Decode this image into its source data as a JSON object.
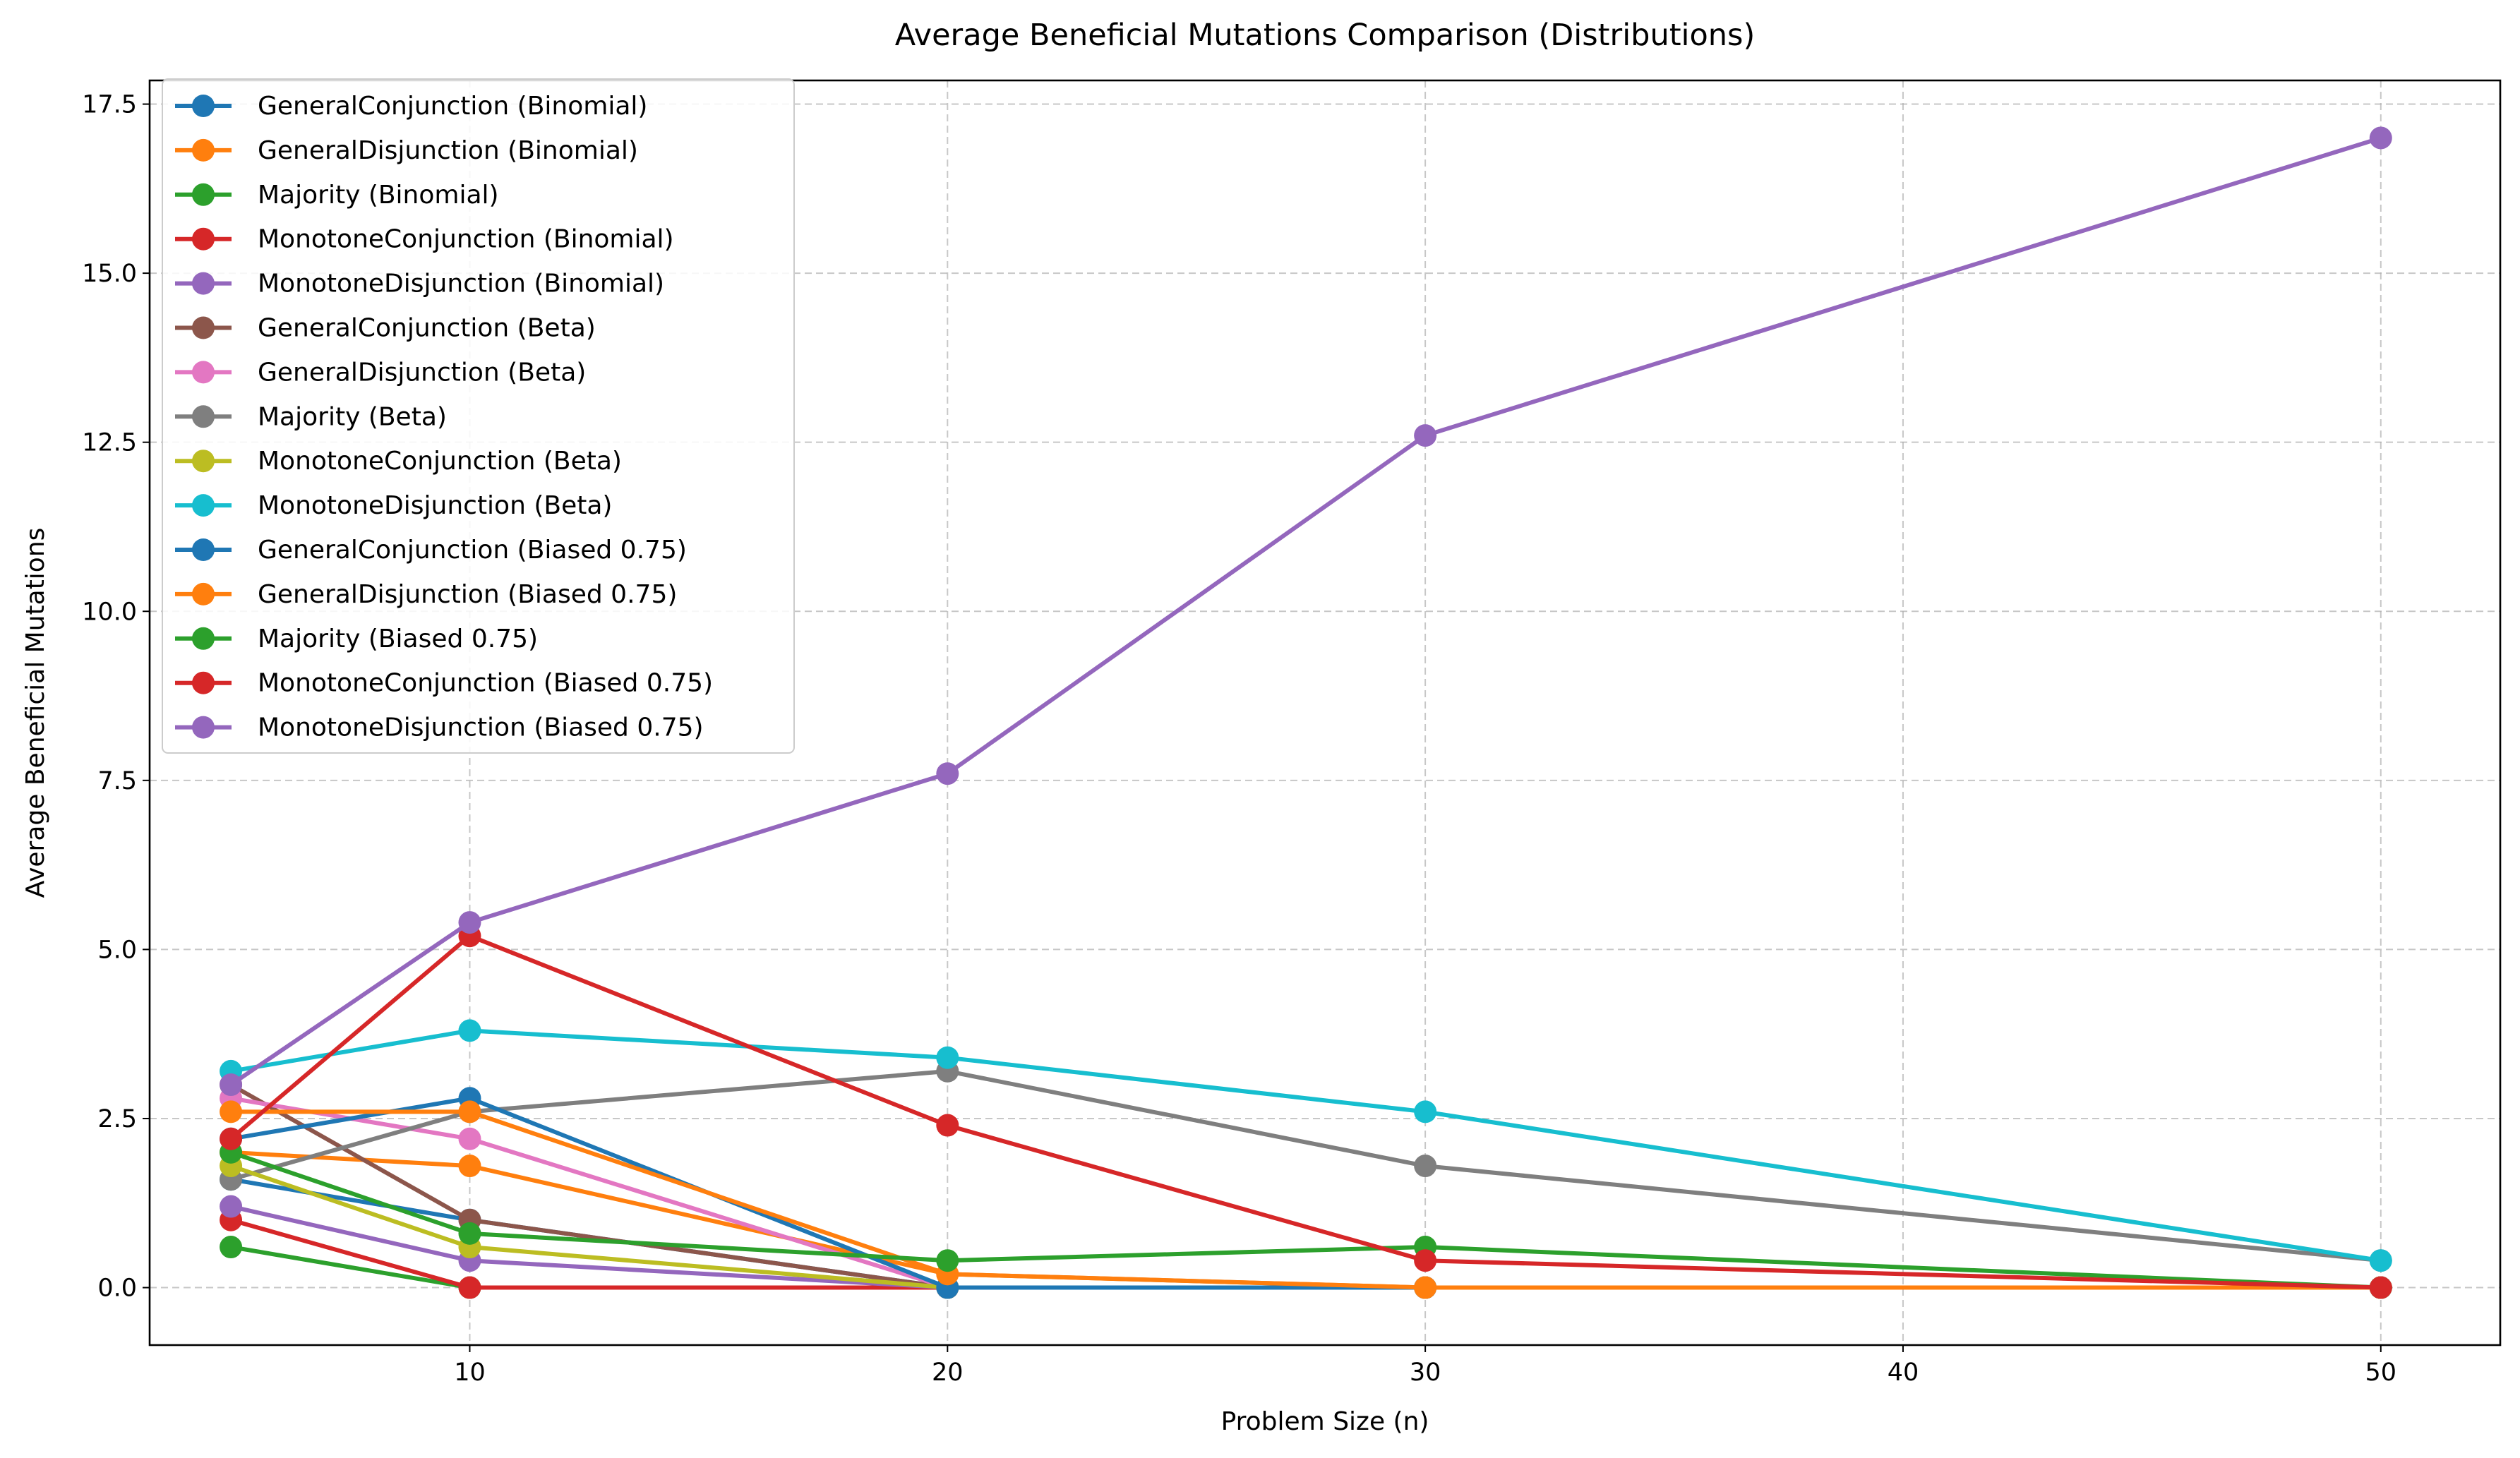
{
  "chart_data": {
    "type": "line",
    "title": "Average Beneficial Mutations Comparison (Distributions)",
    "xlabel": "Problem Size (n)",
    "ylabel": "Average Beneficial Mutations",
    "xlim": [
      3.3,
      52.5
    ],
    "ylim": [
      -0.85,
      17.85
    ],
    "x_ticks": [
      10,
      20,
      30,
      40,
      50
    ],
    "x_tick_labels": [
      "10",
      "20",
      "30",
      "40",
      "50"
    ],
    "y_ticks": [
      0,
      2.5,
      5,
      7.5,
      10,
      12.5,
      15,
      17.5
    ],
    "y_tick_labels": [
      "0.0",
      "2.5",
      "5.0",
      "7.5",
      "10.0",
      "12.5",
      "15.0",
      "17.5"
    ],
    "grid": true,
    "legend_position": "top-left",
    "x": [
      5,
      10,
      20,
      30,
      50
    ],
    "series": [
      {
        "name": "GeneralConjunction (Binomial)",
        "color": "#1f77b4",
        "values": [
          1.6,
          1.0,
          0.0,
          0.0,
          0.0
        ]
      },
      {
        "name": "GeneralDisjunction (Binomial)",
        "color": "#ff7f0e",
        "values": [
          2.0,
          1.8,
          0.2,
          0.0,
          0.0
        ]
      },
      {
        "name": "Majority (Binomial)",
        "color": "#2ca02c",
        "values": [
          0.6,
          0.0,
          0.0,
          0.0,
          0.0
        ]
      },
      {
        "name": "MonotoneConjunction (Binomial)",
        "color": "#d62728",
        "values": [
          1.0,
          0.0,
          0.0,
          0.0,
          0.0
        ]
      },
      {
        "name": "MonotoneDisjunction (Binomial)",
        "color": "#9467bd",
        "values": [
          1.2,
          0.4,
          0.0,
          0.0,
          0.0
        ]
      },
      {
        "name": "GeneralConjunction (Beta)",
        "color": "#8c564b",
        "values": [
          3.0,
          1.0,
          0.0,
          0.0,
          0.0
        ]
      },
      {
        "name": "GeneralDisjunction (Beta)",
        "color": "#e377c2",
        "values": [
          2.8,
          2.2,
          0.0,
          0.0,
          0.0
        ]
      },
      {
        "name": "Majority (Beta)",
        "color": "#7f7f7f",
        "values": [
          1.6,
          2.6,
          3.2,
          1.8,
          0.4
        ]
      },
      {
        "name": "MonotoneConjunction (Beta)",
        "color": "#bcbd22",
        "values": [
          1.8,
          0.6,
          0.0,
          0.0,
          0.0
        ]
      },
      {
        "name": "MonotoneDisjunction (Beta)",
        "color": "#17becf",
        "values": [
          3.2,
          3.8,
          3.4,
          2.6,
          0.4
        ]
      },
      {
        "name": "GeneralConjunction (Biased 0.75)",
        "color": "#1f77b4",
        "values": [
          2.2,
          2.8,
          0.0,
          0.0,
          0.0
        ]
      },
      {
        "name": "GeneralDisjunction (Biased 0.75)",
        "color": "#ff7f0e",
        "values": [
          2.6,
          2.6,
          0.2,
          0.0,
          0.0
        ]
      },
      {
        "name": "Majority (Biased 0.75)",
        "color": "#2ca02c",
        "values": [
          2.0,
          0.8,
          0.4,
          0.6,
          0.0
        ]
      },
      {
        "name": "MonotoneConjunction (Biased 0.75)",
        "color": "#d62728",
        "values": [
          2.2,
          5.2,
          2.4,
          0.4,
          0.0
        ]
      },
      {
        "name": "MonotoneDisjunction (Biased 0.75)",
        "color": "#9467bd",
        "values": [
          3.0,
          5.4,
          7.6,
          12.6,
          17.0
        ]
      }
    ]
  }
}
